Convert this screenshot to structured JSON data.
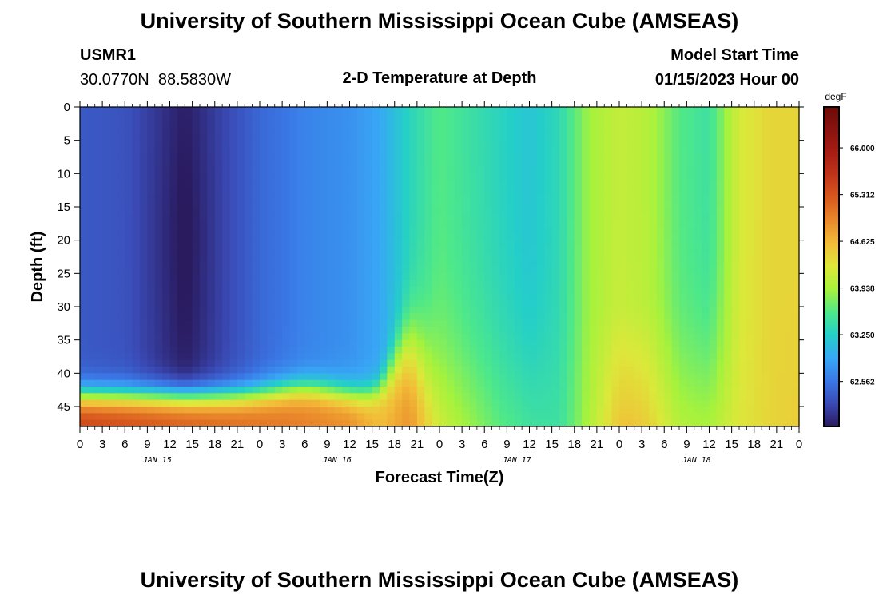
{
  "chart_data": {
    "type": "heatmap",
    "title": "University of Southern Mississippi Ocean Cube (AMSEAS)",
    "footer_title": "University of Southern Mississippi Ocean Cube (AMSEAS)",
    "station_id": "USMR1",
    "station_location": "30.0770N  88.5830W",
    "subtitle": "2-D Temperature at Depth",
    "model_start_label": "Model Start Time",
    "model_start_value": "01/15/2023 Hour 00",
    "xlabel": "Forecast Time(Z)",
    "ylabel": "Depth (ft)",
    "x_hour_range": [
      0,
      96
    ],
    "x_tick_step_hours": 3,
    "x_tick_labels": [
      "0",
      "3",
      "6",
      "9",
      "12",
      "15",
      "18",
      "21",
      "0",
      "3",
      "6",
      "9",
      "12",
      "15",
      "18",
      "21",
      "0",
      "3",
      "6",
      "9",
      "12",
      "15",
      "18",
      "21",
      "0",
      "3",
      "6",
      "9",
      "12",
      "15",
      "18",
      "21",
      "0"
    ],
    "x_date_labels": [
      {
        "label": "JAN 15",
        "hour": 10
      },
      {
        "label": "JAN 16",
        "hour": 34
      },
      {
        "label": "JAN 17",
        "hour": 58
      },
      {
        "label": "JAN 18",
        "hour": 82
      }
    ],
    "y_range": [
      0,
      48
    ],
    "y_ticks": [
      "0",
      "5",
      "10",
      "15",
      "20",
      "25",
      "30",
      "35",
      "40",
      "45"
    ],
    "colorbar": {
      "units": "degF",
      "range": [
        61.9,
        66.6
      ],
      "tick_labels": [
        "66.000",
        "65.312",
        "64.625",
        "63.938",
        "63.250",
        "62.562"
      ],
      "colors": [
        "#2a1a5e",
        "#3a4ab5",
        "#3a78e6",
        "#38a8f5",
        "#24cfc8",
        "#4ee88a",
        "#a6f23c",
        "#dce83a",
        "#f2be38",
        "#ea8a2c",
        "#d95a1e",
        "#c2351a",
        "#a81d14",
        "#8a130f",
        "#6e0b08"
      ]
    },
    "surface_temperature_by_hour": [
      {
        "hour": 0,
        "value": 62.35
      },
      {
        "hour": 6,
        "value": 62.3
      },
      {
        "hour": 14,
        "value": 61.95
      },
      {
        "hour": 18,
        "value": 62.15
      },
      {
        "hour": 24,
        "value": 62.45
      },
      {
        "hour": 30,
        "value": 62.65
      },
      {
        "hour": 36,
        "value": 62.75
      },
      {
        "hour": 40,
        "value": 62.9
      },
      {
        "hour": 44,
        "value": 63.3
      },
      {
        "hour": 48,
        "value": 63.6
      },
      {
        "hour": 52,
        "value": 63.45
      },
      {
        "hour": 56,
        "value": 63.3
      },
      {
        "hour": 60,
        "value": 63.15
      },
      {
        "hour": 64,
        "value": 63.35
      },
      {
        "hour": 68,
        "value": 63.9
      },
      {
        "hour": 72,
        "value": 64.1
      },
      {
        "hour": 76,
        "value": 64.0
      },
      {
        "hour": 80,
        "value": 63.6
      },
      {
        "hour": 84,
        "value": 63.45
      },
      {
        "hour": 88,
        "value": 64.2
      },
      {
        "hour": 92,
        "value": 64.4
      },
      {
        "hour": 96,
        "value": 64.4
      }
    ],
    "bottom_temperature_by_hour": [
      {
        "hour": 0,
        "value": 65.5
      },
      {
        "hour": 12,
        "value": 65.3
      },
      {
        "hour": 24,
        "value": 65.1
      },
      {
        "hour": 36,
        "value": 64.9
      },
      {
        "hour": 40,
        "value": 64.6
      },
      {
        "hour": 44,
        "value": 64.9
      },
      {
        "hour": 48,
        "value": 64.4
      },
      {
        "hour": 56,
        "value": 63.8
      },
      {
        "hour": 64,
        "value": 63.5
      },
      {
        "hour": 72,
        "value": 64.3
      },
      {
        "hour": 80,
        "value": 64.1
      },
      {
        "hour": 88,
        "value": 64.3
      },
      {
        "hour": 96,
        "value": 64.5
      }
    ]
  }
}
